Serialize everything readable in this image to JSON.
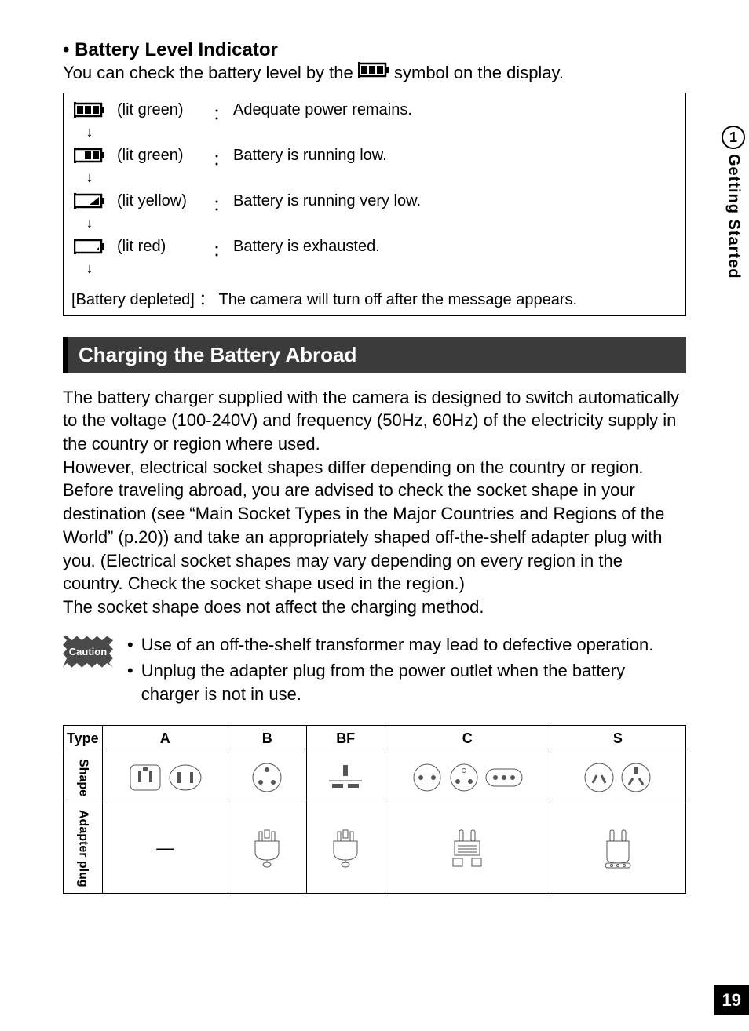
{
  "side": {
    "chapter_num": "1",
    "chapter_title": "Getting Started"
  },
  "page_number": "19",
  "battery": {
    "heading_bullet": "•",
    "heading": "Battery Level Indicator",
    "intro_before": "You can check the battery level by the ",
    "intro_after": " symbol on the display.",
    "rows": [
      {
        "color": "(lit green)",
        "desc": "Adequate power remains.",
        "bars": 3,
        "fill": "#000"
      },
      {
        "color": "(lit green)",
        "desc": "Battery is running low.",
        "bars": 2,
        "fill": "#000"
      },
      {
        "color": "(lit yellow)",
        "desc": "Battery is running very low.",
        "bars": 1,
        "fill": "#000"
      },
      {
        "color": "(lit red)",
        "desc": "Battery is exhausted.",
        "bars": 0,
        "fill": "#000"
      }
    ],
    "colon": "：",
    "depleted_label": "[Battery depleted]",
    "depleted_desc": "The camera will turn off after the message appears."
  },
  "abroad": {
    "heading": "Charging the Battery Abroad",
    "para": "The battery charger supplied with the camera is designed to switch automatically to the voltage (100-240V) and frequency (50Hz, 60Hz) of the electricity supply in the country or region where used.\nHowever, electrical socket shapes differ depending on the country or region. Before traveling abroad, you are advised to check the socket shape in your destination (see “Main Socket Types in the Major Countries and Regions of the World” (p.20)) and take an appropriately shaped off-the-shelf adapter plug with you. (Electrical socket shapes may vary depending on every region in the country. Check the socket shape used in the region.)\nThe socket shape does not affect the charging method."
  },
  "caution": {
    "badge": "Caution",
    "items": [
      "Use of an off-the-shelf transformer may lead to defective operation.",
      "Unplug the adapter plug from the power outlet when the battery charger is not in use."
    ]
  },
  "plug_table": {
    "head_type": "Type",
    "row_shape": "Shape",
    "row_adapter": "Adapter plug",
    "types": [
      "A",
      "B",
      "BF",
      "C",
      "S"
    ],
    "adapter_a": "—"
  },
  "colors": {
    "bar_bg": "#3b3b3b",
    "page_num_bg": "#000000",
    "text": "#000000"
  }
}
